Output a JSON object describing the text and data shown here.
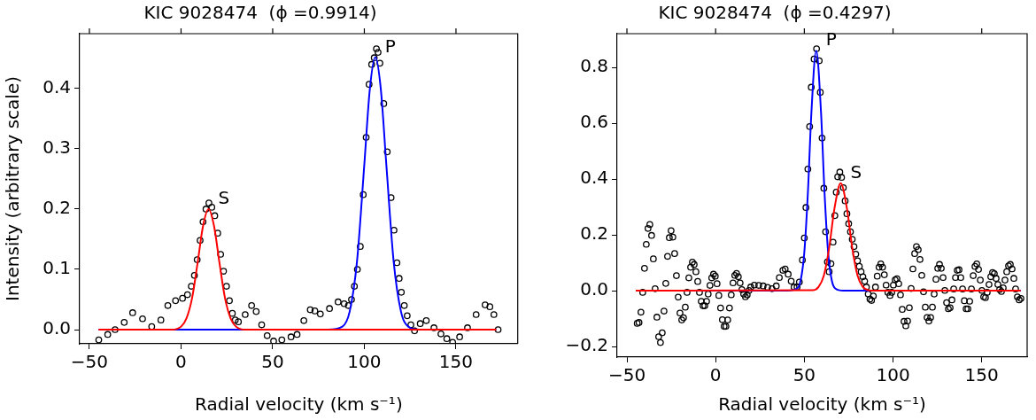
{
  "chart_data": [
    {
      "type": "scatter",
      "title": "KIC 9028474  (ϕ =0.9914)",
      "xlabel": "Radial velocity (km s⁻¹)",
      "ylabel": "Intensity (arbitrary scale)",
      "xlim": [
        -55.3,
        183.7
      ],
      "ylim": [
        -0.0235,
        0.491
      ],
      "xticks": [
        -50,
        {
          "value": 0,
          "label": "0"
        },
        50,
        100,
        150
      ],
      "yticks": [
        {
          "value": 0,
          "label": "0.0"
        },
        0.1,
        0.2,
        0.3,
        0.4
      ],
      "grid": false,
      "legend": false,
      "series": [
        {
          "type": "scatter",
          "marker": "circle",
          "color": "#000000",
          "x": [
            -44.9,
            -40,
            -36,
            -31,
            -26.4,
            -21,
            -16,
            -11,
            -7.2,
            -3,
            0.8,
            3.5,
            5.6,
            7.3,
            8.8,
            10.4,
            12,
            13.6,
            15.2,
            16.8,
            18.4,
            20,
            21.6,
            23.2,
            24.8,
            26.4,
            28,
            29.6,
            31.3,
            35,
            38.5,
            41,
            44,
            47,
            50.5,
            55,
            60,
            63.3,
            67,
            70.5,
            73,
            76,
            81,
            85.7,
            89,
            91.3,
            93,
            94.6,
            96.2,
            97.8,
            99.4,
            101,
            102.6,
            104,
            105.4,
            106.6,
            107.5,
            108.5,
            110.6,
            112.5,
            114.6,
            116.2,
            117.8,
            119,
            120.2,
            121.8,
            123.4,
            125.4,
            127.4,
            130.5,
            133.8,
            138,
            141.8,
            145,
            148.2,
            152,
            156.3,
            161,
            165.9,
            168.5,
            170.7,
            173
          ],
          "values": [
            -0.017,
            -0.008,
            0.0,
            0.012,
            0.028,
            0.018,
            0.005,
            0.016,
            0.04,
            0.048,
            0.052,
            0.058,
            0.072,
            0.09,
            0.116,
            0.148,
            0.179,
            0.2,
            0.21,
            0.203,
            0.189,
            0.16,
            0.125,
            0.097,
            0.072,
            0.048,
            0.027,
            0.016,
            0.013,
            0.025,
            0.04,
            0.03,
            0.008,
            -0.01,
            -0.019,
            -0.017,
            -0.012,
            -0.008,
            0.015,
            0.033,
            0.031,
            0.026,
            0.035,
            0.046,
            0.043,
            0.04,
            0.05,
            0.072,
            0.1,
            0.138,
            0.224,
            0.319,
            0.407,
            0.44,
            0.451,
            0.466,
            0.46,
            0.442,
            0.375,
            0.295,
            0.219,
            0.165,
            0.111,
            0.085,
            0.062,
            0.04,
            0.023,
            0.008,
            -0.002,
            0.01,
            0.015,
            0.003,
            -0.007,
            -0.015,
            -0.021,
            -0.012,
            0.003,
            0.025,
            0.041,
            0.038,
            0.025,
            0.0
          ]
        },
        {
          "type": "line",
          "color": "#0000ff",
          "x": [
            -45,
            80,
            88,
            92,
            96,
            100,
            103,
            106,
            109,
            112,
            116,
            120,
            124,
            130,
            172
          ],
          "values": [
            0,
            0,
            0.005,
            0.03,
            0.113,
            0.274,
            0.399,
            0.452,
            0.399,
            0.274,
            0.113,
            0.03,
            0.005,
            0,
            0
          ]
        },
        {
          "type": "line",
          "color": "#ff0000",
          "x": [
            -45,
            -5,
            0,
            3,
            6,
            9,
            12,
            15,
            18,
            21,
            24,
            27,
            30,
            35,
            172
          ],
          "values": [
            0,
            0,
            0.005,
            0.019,
            0.052,
            0.11,
            0.172,
            0.2,
            0.172,
            0.11,
            0.052,
            0.019,
            0.005,
            0,
            0
          ]
        }
      ],
      "annotations": [
        "S",
        "P"
      ]
    },
    {
      "type": "scatter",
      "title": "KIC 9028474  (ϕ =0.4297)",
      "xlabel": "Radial velocity (km s⁻¹)",
      "xlim": [
        -55.5,
        175.6
      ],
      "ylim": [
        -0.238,
        0.921
      ],
      "xticks": [
        -50,
        {
          "value": 0,
          "label": "0"
        },
        50,
        100,
        150
      ],
      "yticks": [
        -0.2,
        {
          "value": 0,
          "label": "0.0"
        },
        0.2,
        0.4,
        0.6,
        0.8
      ],
      "grid": false,
      "legend": false,
      "series": [
        {
          "type": "scatter",
          "marker": "circle",
          "color": "#000000",
          "x": [
            -44.2,
            -43.2,
            -42.1,
            -41.1,
            -40.1,
            -39.1,
            -38.1,
            -37.1,
            -36.1,
            -35.1,
            -34.1,
            -33.1,
            -32.1,
            -31.1,
            -30.1,
            -29.1,
            -28.1,
            -27.1,
            -26.1,
            -25.1,
            -24.1,
            -23.1,
            -22.1,
            -21.1,
            -20.1,
            -19.1,
            -18.1,
            -17.1,
            -16.1,
            -15.1,
            -14.1,
            -13.1,
            -12.1,
            -11.1,
            -10.1,
            -9.1,
            -8.1,
            -7.1,
            -6.1,
            -5.1,
            -4.2,
            -3.2,
            -2.2,
            -1.2,
            -0.2,
            0.8,
            1.8,
            2.8,
            3.8,
            4.8,
            5.8,
            6.8,
            7.8,
            8.8,
            9.8,
            10.8,
            11.8,
            12.8,
            13.8,
            14.8,
            15.8,
            16.8,
            17.8,
            18.8,
            19.8,
            21.8,
            24.3,
            26.8,
            29.3,
            31.8,
            34.2,
            35.9,
            37.9,
            39.2,
            40.9,
            42.6,
            44.2,
            45.9,
            47.2,
            48.9,
            50,
            50.9,
            52,
            53,
            53.9,
            55.5,
            56.9,
            58.4,
            59,
            60,
            61,
            62,
            63,
            64,
            65,
            66.2,
            67.2,
            68,
            68.8,
            70,
            71,
            72,
            73,
            74,
            75,
            76,
            77,
            78,
            79,
            80,
            81,
            82,
            83,
            84,
            85,
            86,
            87,
            87.9,
            88.9,
            90.1,
            91.1,
            92.1,
            93.1,
            94.1,
            95.1,
            96.1,
            97.1,
            98.3,
            99.3,
            100.2,
            101.2,
            102.2,
            103.2,
            104.2,
            105.2,
            106.2,
            107.2,
            108.2,
            109.2,
            110.2,
            111.2,
            112.2,
            113.2,
            114.2,
            115.2,
            116.2,
            117.2,
            118.2,
            119.2,
            120.2,
            121.2,
            122.2,
            123.2,
            124.2,
            125.2,
            126.2,
            127.2,
            128.2,
            129.2,
            130.2,
            131.2,
            132.2,
            133.2,
            134.2,
            135.2,
            136.2,
            137.2,
            138.2,
            139.2,
            140.2,
            141.2,
            142.2,
            143.2,
            144.2,
            145.2,
            146.2,
            147.2,
            148.2,
            149.2,
            150.1,
            151.1,
            152.1,
            153.1,
            154.1,
            155.1,
            156.1,
            157.1,
            158.1,
            159.1,
            160.1,
            161.1,
            162.1,
            163.1,
            164.1,
            165.1,
            166.1,
            167.1,
            168.1,
            169.1,
            170.1,
            171.1,
            172.1
          ],
          "values": [
            -0.117,
            -0.114,
            -0.077,
            -0.006,
            0.08,
            0.166,
            0.223,
            0.237,
            0.198,
            0.114,
            0.007,
            -0.095,
            -0.165,
            -0.186,
            -0.151,
            -0.073,
            0.026,
            0.123,
            0.19,
            0.215,
            0.192,
            0.133,
            0.054,
            -0.023,
            -0.08,
            -0.105,
            -0.097,
            -0.059,
            -0.006,
            0.046,
            0.084,
            0.102,
            0.094,
            0.068,
            0.033,
            -0.006,
            -0.038,
            -0.054,
            -0.054,
            -0.038,
            -0.012,
            0.019,
            0.046,
            0.059,
            0.052,
            0.025,
            -0.017,
            -0.062,
            -0.104,
            -0.128,
            -0.128,
            -0.105,
            -0.062,
            -0.015,
            0.028,
            0.055,
            0.062,
            0.05,
            0.028,
            0.004,
            -0.012,
            -0.022,
            -0.015,
            0.001,
            0.013,
            0.02,
            0.019,
            0.017,
            0.012,
            0.007,
            0.017,
            0.047,
            0.073,
            0.078,
            0.059,
            0.034,
            0.013,
            0.013,
            0.031,
            0.11,
            0.189,
            0.298,
            0.436,
            0.588,
            0.729,
            0.83,
            0.867,
            0.824,
            0.711,
            0.547,
            0.367,
            0.211,
            0.103,
            0.068,
            0.097,
            0.174,
            0.269,
            0.353,
            0.408,
            0.425,
            0.406,
            0.369,
            0.322,
            0.276,
            0.24,
            0.211,
            0.184,
            0.158,
            0.131,
            0.107,
            0.087,
            0.068,
            0.05,
            0.034,
            0.013,
            -0.012,
            -0.03,
            -0.035,
            -0.019,
            0.013,
            0.052,
            0.084,
            0.096,
            0.084,
            0.057,
            0.02,
            -0.006,
            -0.017,
            -0.006,
            0.02,
            0.039,
            0.043,
            0.025,
            -0.015,
            -0.067,
            -0.11,
            -0.126,
            -0.109,
            -0.061,
            0.008,
            0.078,
            0.133,
            0.158,
            0.147,
            0.112,
            0.055,
            -0.004,
            -0.059,
            -0.096,
            -0.109,
            -0.096,
            -0.059,
            -0.012,
            0.041,
            0.08,
            0.094,
            0.08,
            0.047,
            0.001,
            -0.043,
            -0.065,
            -0.061,
            -0.033,
            0.006,
            0.047,
            0.073,
            0.075,
            0.047,
            0.006,
            -0.036,
            -0.065,
            -0.065,
            -0.038,
            0.006,
            0.054,
            0.087,
            0.096,
            0.076,
            0.038,
            0.001,
            -0.022,
            -0.025,
            -0.006,
            0.022,
            0.05,
            0.065,
            0.061,
            0.044,
            0.022,
            0.004,
            -0.003,
            0.01,
            0.038,
            0.068,
            0.089,
            0.094,
            0.078,
            0.044,
            0.006,
            -0.022,
            -0.033,
            -0.028
          ]
        },
        {
          "type": "line",
          "color": "#0000ff",
          "x": [
            -45,
            40,
            46,
            48,
            50,
            52,
            54,
            56.7,
            59.4,
            61.4,
            63.4,
            65.4,
            67.4,
            72,
            172
          ],
          "values": [
            0,
            0,
            0.008,
            0.039,
            0.138,
            0.35,
            0.64,
            0.86,
            0.64,
            0.35,
            0.138,
            0.039,
            0.008,
            0,
            0
          ]
        },
        {
          "type": "line",
          "color": "#ff0000",
          "x": [
            -45,
            55,
            58,
            61,
            64,
            67,
            70.5,
            74,
            77,
            80,
            83,
            86,
            90,
            172
          ],
          "values": [
            0,
            0.002,
            0.013,
            0.054,
            0.154,
            0.295,
            0.385,
            0.295,
            0.154,
            0.054,
            0.013,
            0.002,
            0,
            0
          ]
        }
      ],
      "annotations": [
        "P",
        "S"
      ]
    }
  ]
}
